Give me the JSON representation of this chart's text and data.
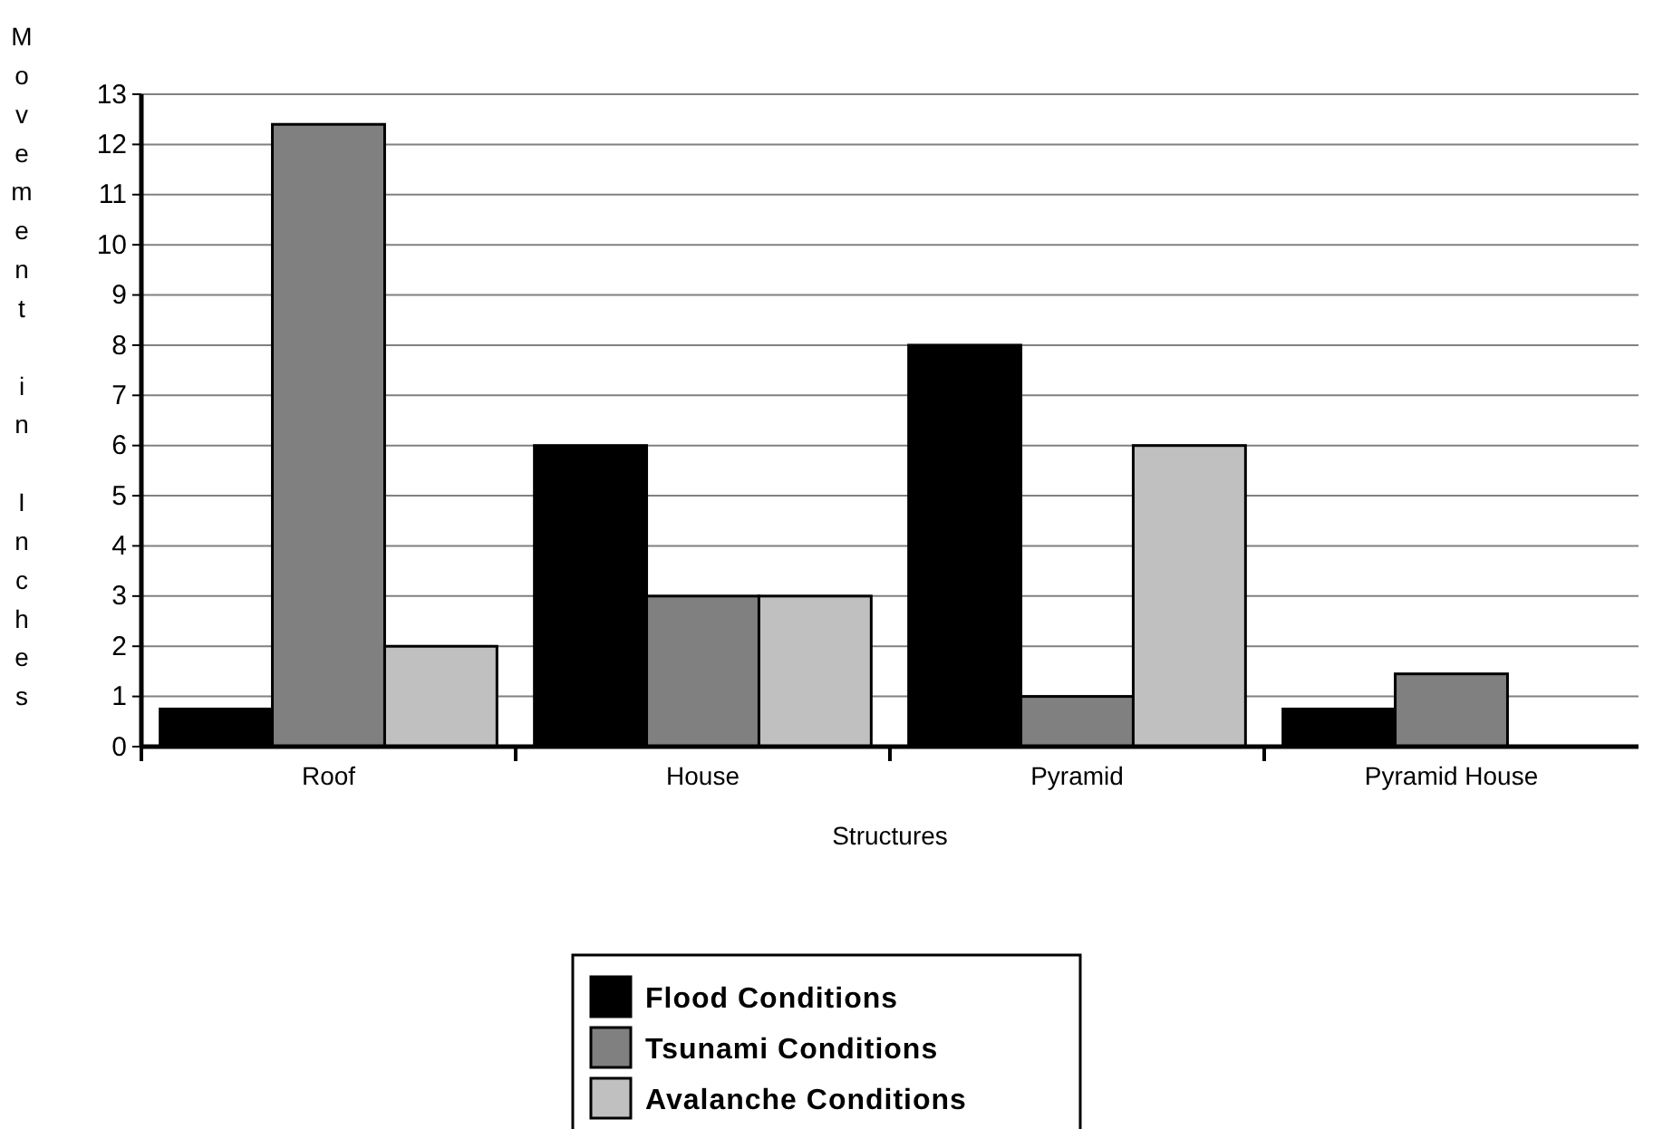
{
  "chart_data": {
    "type": "bar",
    "xlabel": "Structures",
    "ylabel": "Movement in Inches",
    "categories": [
      "Roof",
      "House",
      "Pyramid",
      "Pyramid House"
    ],
    "series": [
      {
        "name": "Flood Conditions",
        "color": "#000000",
        "values": [
          0.75,
          6,
          8,
          0.75
        ]
      },
      {
        "name": "Tsunami Conditions",
        "color": "#808080",
        "values": [
          12.4,
          3,
          1,
          1.45
        ]
      },
      {
        "name": "Avalanche Conditions",
        "color": "#c0c0c0",
        "values": [
          2,
          3,
          6,
          null
        ]
      }
    ],
    "ylim": [
      0,
      13
    ],
    "yticks": [
      0,
      1,
      2,
      3,
      4,
      5,
      6,
      7,
      8,
      9,
      10,
      11,
      12,
      13
    ],
    "grid": "y",
    "legend": "bottom"
  }
}
